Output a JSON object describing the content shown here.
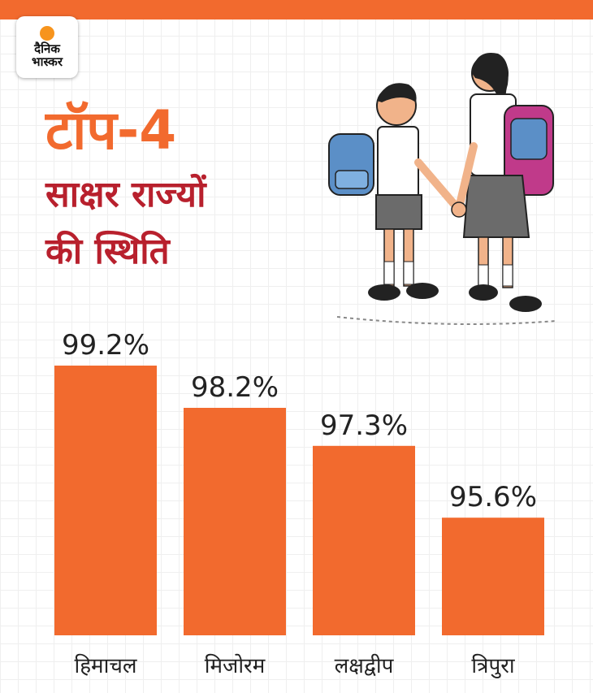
{
  "brand": {
    "logo_line1": "दैनिक",
    "logo_line2": "भास्कर"
  },
  "headline": {
    "line1": "टॉप-4",
    "line2": "साक्षर राज्यों",
    "line3": "की स्थिति"
  },
  "colors": {
    "bar": "#f26a2e",
    "accent": "#f26a2e",
    "title_red": "#b8202d"
  },
  "chart_data": {
    "type": "bar",
    "categories": [
      "हिमाचल",
      "मिजोरम",
      "लक्षद्वीप",
      "त्रिपुरा"
    ],
    "values": [
      99.2,
      98.2,
      97.3,
      95.6
    ],
    "value_labels": [
      "99.2%",
      "98.2%",
      "97.3%",
      "95.6%"
    ],
    "unit": "%",
    "title": "",
    "xlabel": "",
    "ylabel": "",
    "grid": false,
    "legend": "none"
  }
}
